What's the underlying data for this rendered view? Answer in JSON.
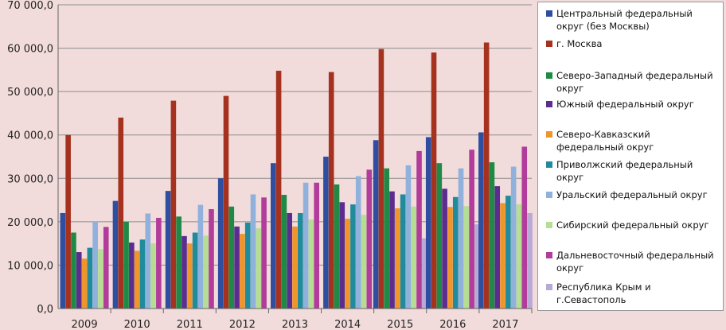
{
  "chart_data": {
    "type": "bar",
    "categories": [
      "2009",
      "2010",
      "2011",
      "2012",
      "2013",
      "2014",
      "2015",
      "2016",
      "2017"
    ],
    "ylim": [
      0,
      70000
    ],
    "yticks": [
      "0,0",
      "10 000,0",
      "20 000,0",
      "30 000,0",
      "40 000,0",
      "50 000,0",
      "60 000,0",
      "70 000,0"
    ],
    "grid": true,
    "legend_position": "right",
    "series": [
      {
        "name": "Центральный федеральный округ (без Москвы)",
        "color": "#2f4ea0",
        "values": [
          22000,
          24800,
          27100,
          30000,
          33500,
          35000,
          38800,
          39500,
          40600
        ]
      },
      {
        "name": "г. Москва",
        "color": "#a5321f",
        "values": [
          40000,
          44000,
          47900,
          49000,
          54800,
          54500,
          59800,
          59000,
          61300
        ]
      },
      {
        "name": "Северо-Западный федеральный округ",
        "color": "#1e8a45",
        "values": [
          17500,
          20000,
          21200,
          23500,
          26200,
          28600,
          32300,
          33500,
          33700
        ]
      },
      {
        "name": "Южный федеральный округ",
        "color": "#5b2d8e",
        "values": [
          13000,
          15200,
          16700,
          18900,
          22000,
          24500,
          27000,
          27600,
          28200
        ]
      },
      {
        "name": "Северо-Кавказский федеральный округ",
        "color": "#f0952a",
        "values": [
          11500,
          13300,
          15000,
          17200,
          18900,
          20700,
          23100,
          23400,
          24300
        ]
      },
      {
        "name": "Приволжский федеральный округ",
        "color": "#1f8b9b",
        "values": [
          14000,
          15900,
          17500,
          19800,
          22000,
          24000,
          26300,
          25700,
          26000
        ]
      },
      {
        "name": "Уральский федеральный округ",
        "color": "#8fb1dc",
        "values": [
          20000,
          21900,
          23900,
          26300,
          29000,
          30500,
          33000,
          32300,
          32700
        ]
      },
      {
        "name": "Сибирский федеральный округ",
        "color": "#b5dd94",
        "values": [
          13700,
          15000,
          16800,
          18500,
          20500,
          21600,
          23500,
          23600,
          24000
        ]
      },
      {
        "name": "Дальневосточный федеральный округ",
        "color": "#b23c9a",
        "values": [
          18800,
          20900,
          22900,
          25600,
          29000,
          32000,
          36300,
          36600,
          37300
        ]
      },
      {
        "name": "Республика Крым и г.Севастополь",
        "color": "#b8a9d6",
        "values": [
          null,
          null,
          null,
          null,
          null,
          null,
          16200,
          19400,
          22000
        ]
      }
    ]
  }
}
